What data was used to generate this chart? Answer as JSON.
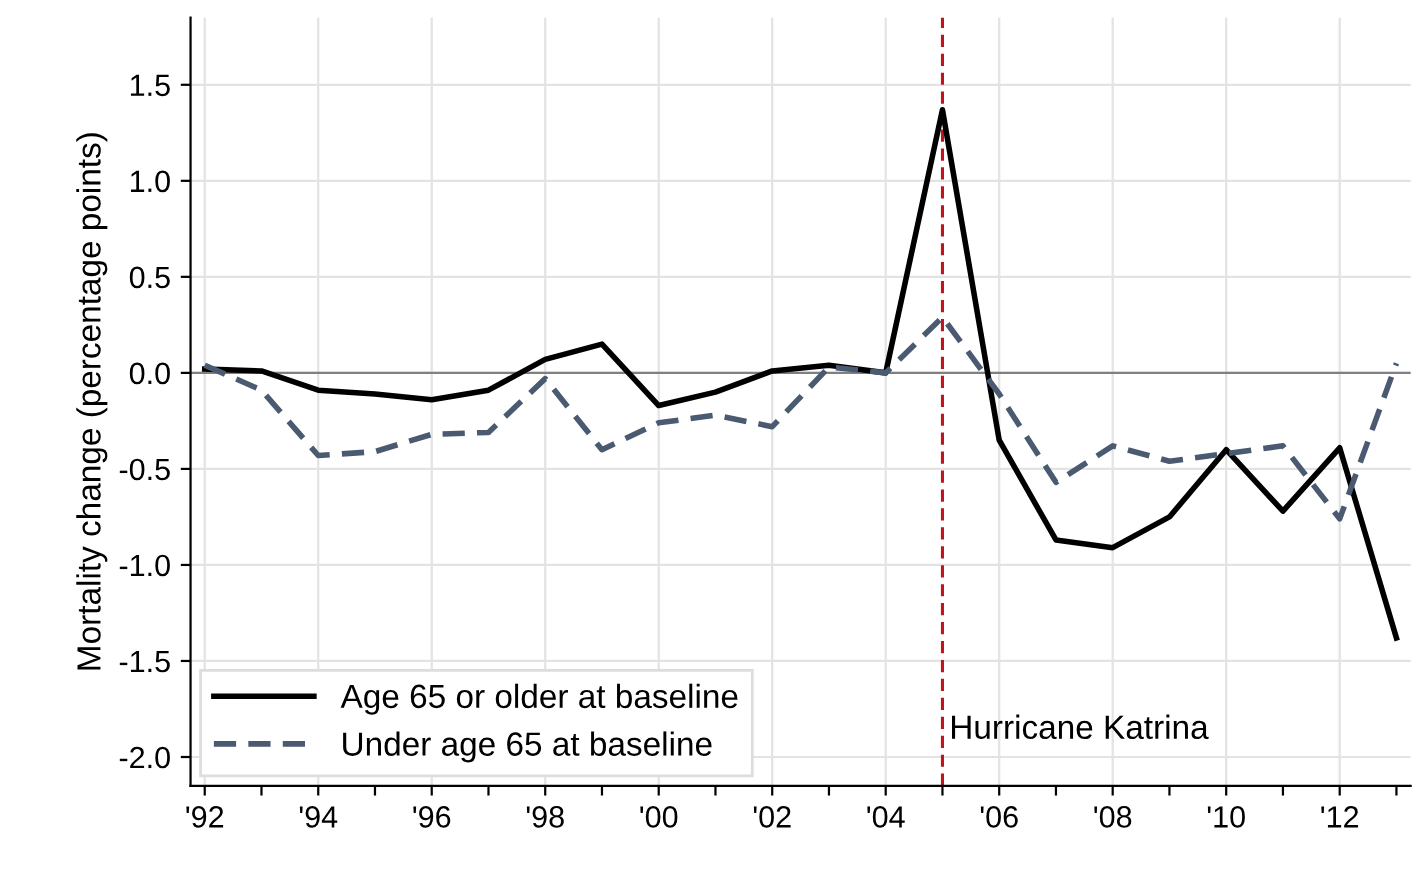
{
  "chart_data": {
    "type": "line",
    "ylabel": "Mortality change (percentage points)",
    "x": [
      1992,
      1993,
      1994,
      1995,
      1996,
      1997,
      1998,
      1999,
      2000,
      2001,
      2002,
      2003,
      2004,
      2005,
      2006,
      2007,
      2008,
      2009,
      2010,
      2011,
      2012,
      2013
    ],
    "series": [
      {
        "name": "Age 65 or older at baseline",
        "color": "#000000",
        "line_style": "solid",
        "values": [
          0.02,
          0.01,
          -0.09,
          -0.11,
          -0.14,
          -0.09,
          0.07,
          0.15,
          -0.17,
          -0.1,
          0.01,
          0.04,
          0.0,
          1.37,
          -0.35,
          -0.87,
          -0.91,
          -0.75,
          -0.4,
          -0.72,
          -0.39,
          -1.38
        ]
      },
      {
        "name": "Under age 65 at baseline",
        "color": "#4a5a70",
        "line_style": "dashed",
        "values": [
          0.04,
          -0.09,
          -0.43,
          -0.41,
          -0.32,
          -0.31,
          -0.03,
          -0.4,
          -0.26,
          -0.22,
          -0.28,
          0.03,
          0.0,
          0.29,
          -0.11,
          -0.57,
          -0.38,
          -0.46,
          -0.42,
          -0.38,
          -0.76,
          0.05
        ]
      }
    ],
    "xlim": [
      1991.75,
      2013.25
    ],
    "ylim": [
      -2.15,
      1.85
    ],
    "xticks": [
      {
        "value": 1992,
        "label": "'92"
      },
      {
        "value": 1993,
        "label": null
      },
      {
        "value": 1994,
        "label": "'94"
      },
      {
        "value": 1995,
        "label": null
      },
      {
        "value": 1996,
        "label": "'96"
      },
      {
        "value": 1997,
        "label": null
      },
      {
        "value": 1998,
        "label": "'98"
      },
      {
        "value": 1999,
        "label": null
      },
      {
        "value": 2000,
        "label": "'00"
      },
      {
        "value": 2001,
        "label": null
      },
      {
        "value": 2002,
        "label": "'02"
      },
      {
        "value": 2003,
        "label": null
      },
      {
        "value": 2004,
        "label": "'04"
      },
      {
        "value": 2005,
        "label": null
      },
      {
        "value": 2006,
        "label": "'06"
      },
      {
        "value": 2007,
        "label": null
      },
      {
        "value": 2008,
        "label": "'08"
      },
      {
        "value": 2009,
        "label": null
      },
      {
        "value": 2010,
        "label": "'10"
      },
      {
        "value": 2011,
        "label": null
      },
      {
        "value": 2012,
        "label": "'12"
      },
      {
        "value": 2013,
        "label": null
      }
    ],
    "yticks": [
      {
        "value": 1.5,
        "label": "1.5"
      },
      {
        "value": 1.0,
        "label": "1.0"
      },
      {
        "value": 0.5,
        "label": "0.5"
      },
      {
        "value": 0.0,
        "label": "0.0"
      },
      {
        "value": -0.5,
        "label": "-0.5"
      },
      {
        "value": -1.0,
        "label": "-1.0"
      },
      {
        "value": -1.5,
        "label": "-1.5"
      },
      {
        "value": -2.0,
        "label": "-2.0"
      }
    ],
    "ref_lines": [
      {
        "axis": "y",
        "value": 0,
        "label": null,
        "color": "#808080",
        "line_style": "solid"
      },
      {
        "axis": "x",
        "value": 2005,
        "label": "Hurricane Katrina",
        "color": "#c0141c",
        "line_style": "dashed"
      }
    ],
    "grid": true,
    "legend": "bottom left",
    "marker": "none"
  }
}
